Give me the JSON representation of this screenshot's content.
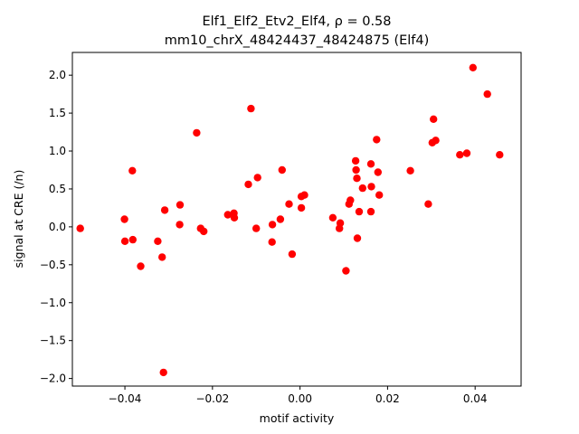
{
  "chart_data": {
    "type": "scatter",
    "title_line1": "Elf1_Elf2_Etv2_Elf4, ρ = 0.58",
    "title_line2": "mm10_chrX_48424437_48424875 (Elf4)",
    "xlabel": "motif activity",
    "ylabel": "signal at CRE (/n)",
    "xlim": [
      -0.052,
      0.0505
    ],
    "ylim": [
      -2.1,
      2.3
    ],
    "xticks": [
      -0.04,
      -0.02,
      0.0,
      0.02,
      0.04
    ],
    "xtick_labels": [
      "−0.04",
      "−0.02",
      "0.00",
      "0.02",
      "0.04"
    ],
    "yticks": [
      -2.0,
      -1.5,
      -1.0,
      -0.5,
      0.0,
      0.5,
      1.0,
      1.5,
      2.0
    ],
    "ytick_labels": [
      "−2.0",
      "−1.5",
      "−1.0",
      "−0.5",
      "0.0",
      "0.5",
      "1.0",
      "1.5",
      "2.0"
    ],
    "grid": false,
    "marker_color": "#ff0000",
    "points": [
      [
        -0.0502,
        -0.02
      ],
      [
        -0.0401,
        0.1
      ],
      [
        -0.04,
        -0.19
      ],
      [
        -0.0383,
        0.74
      ],
      [
        -0.0382,
        -0.17
      ],
      [
        -0.0364,
        -0.52
      ],
      [
        -0.0325,
        -0.19
      ],
      [
        -0.0315,
        -0.4
      ],
      [
        -0.0309,
        0.22
      ],
      [
        -0.0312,
        -1.92
      ],
      [
        -0.0274,
        0.29
      ],
      [
        -0.0275,
        0.03
      ],
      [
        -0.0236,
        1.24
      ],
      [
        -0.0227,
        -0.02
      ],
      [
        -0.022,
        -0.06
      ],
      [
        -0.0165,
        0.16
      ],
      [
        -0.0151,
        0.18
      ],
      [
        -0.015,
        0.12
      ],
      [
        -0.0118,
        0.56
      ],
      [
        -0.0112,
        1.56
      ],
      [
        -0.0097,
        0.65
      ],
      [
        -0.01,
        -0.02
      ],
      [
        -0.0063,
        0.03
      ],
      [
        -0.0064,
        -0.2
      ],
      [
        -0.0045,
        0.1
      ],
      [
        -0.0041,
        0.75
      ],
      [
        -0.0025,
        0.3
      ],
      [
        -0.0018,
        -0.36
      ],
      [
        0.0003,
        0.25
      ],
      [
        0.0003,
        0.4
      ],
      [
        0.001,
        0.42
      ],
      [
        0.0075,
        0.12
      ],
      [
        0.009,
        -0.02
      ],
      [
        0.0092,
        0.05
      ],
      [
        0.0105,
        -0.58
      ],
      [
        0.0112,
        0.3
      ],
      [
        0.0115,
        0.35
      ],
      [
        0.0127,
        0.87
      ],
      [
        0.0128,
        0.75
      ],
      [
        0.013,
        0.64
      ],
      [
        0.0131,
        -0.15
      ],
      [
        0.0135,
        0.2
      ],
      [
        0.0143,
        0.51
      ],
      [
        0.0162,
        0.83
      ],
      [
        0.0163,
        0.53
      ],
      [
        0.0162,
        0.2
      ],
      [
        0.0175,
        1.15
      ],
      [
        0.0178,
        0.72
      ],
      [
        0.0181,
        0.42
      ],
      [
        0.0252,
        0.74
      ],
      [
        0.0293,
        0.3
      ],
      [
        0.0302,
        1.11
      ],
      [
        0.0305,
        1.42
      ],
      [
        0.031,
        1.14
      ],
      [
        0.0365,
        0.95
      ],
      [
        0.0381,
        0.97
      ],
      [
        0.0395,
        2.1
      ],
      [
        0.0428,
        1.75
      ],
      [
        0.0456,
        0.95
      ]
    ]
  }
}
